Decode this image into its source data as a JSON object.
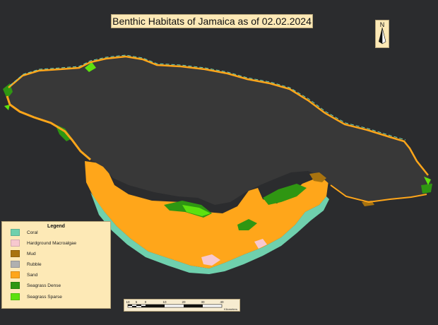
{
  "title": "Benthic Habitats of Jamaica as of 02.02.2024",
  "north_arrow": {
    "letter": "N"
  },
  "legend": {
    "title": "Legend",
    "items": [
      {
        "label": "Coral",
        "color": "#6fd0ad"
      },
      {
        "label": "Hardground Macroalgae",
        "color": "#f7c8cf"
      },
      {
        "label": "Mud",
        "color": "#a8730f"
      },
      {
        "label": "Rubble",
        "color": "#b0b0b0"
      },
      {
        "label": "Sand",
        "color": "#ffa61a"
      },
      {
        "label": "Seagrass Dense",
        "color": "#2f9612"
      },
      {
        "label": "Seagrass Sparse",
        "color": "#5de10f"
      }
    ]
  },
  "scale_bar": {
    "ticks": [
      "10",
      "5",
      "0",
      "10",
      "20",
      "30",
      "40"
    ],
    "unit": "Kilometers"
  },
  "colors": {
    "ocean": "#2b2c2e",
    "land": "#383838",
    "frame": "#fde9b6"
  }
}
